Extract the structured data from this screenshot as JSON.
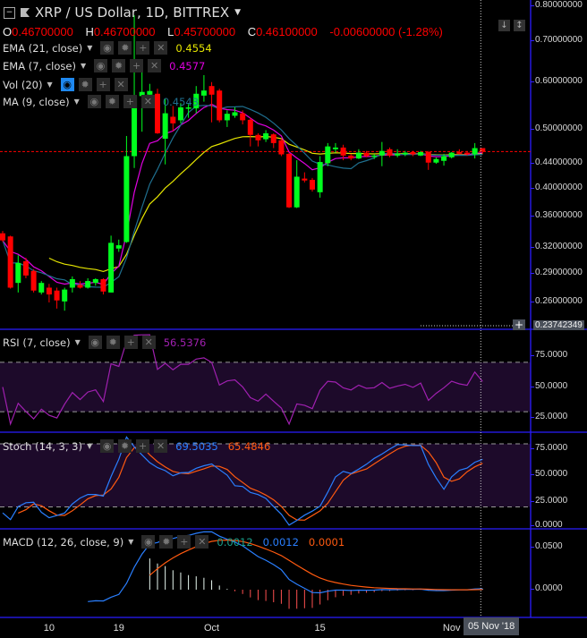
{
  "header": {
    "title": "XRP / US Dollar, 1D, BITTREX",
    "open_label": "O",
    "open": "0.46700000",
    "high_label": "H",
    "high": "0.46700000",
    "low_label": "L",
    "low": "0.45700000",
    "close_label": "C",
    "close": "0.46100000",
    "change": "-0.00600000 (-1.28%)"
  },
  "legend": {
    "ema21": {
      "label": "EMA (21, close)",
      "value": "0.4554",
      "color": "#e5e500"
    },
    "ema7": {
      "label": "EMA (7, close)",
      "value": "0.4577",
      "color": "#e000e0"
    },
    "vol": {
      "label": "Vol (20)"
    },
    "ma9": {
      "label": "MA (9, close)",
      "value": "0.4543",
      "color": "#1f6f8f"
    },
    "rsi": {
      "label": "RSI (7, close)",
      "value": "56.5376",
      "color": "#a020b0"
    },
    "stoch": {
      "label": "Stoch (14, 3, 3)",
      "k": "69.5035",
      "d": "65.4846",
      "k_color": "#2a7fff",
      "d_color": "#ff5a10"
    },
    "macd": {
      "label": "MACD (12, 26, close, 9)",
      "hist": "0.0012",
      "macd": "0.0012",
      "signal": "0.0001",
      "hist_color": "#1a9e8a",
      "macd_color": "#2a7fff",
      "signal_color": "#ff5a10"
    }
  },
  "icons": [
    "eye-icon",
    "gear-icon",
    "plus-icon",
    "close-icon"
  ],
  "price_axis": [
    "0.80000000",
    "0.70000000",
    "0.60000000",
    "0.50000000",
    "0.44000000",
    "0.40000000",
    "0.36000000",
    "0.32000000",
    "0.29000000",
    "0.26000000"
  ],
  "crosshair_price": "0.23742349",
  "rsi_axis": [
    "75.0000",
    "50.0000",
    "25.0000"
  ],
  "stoch_axis": [
    "75.0000",
    "50.0000",
    "25.0000",
    "0.0000"
  ],
  "macd_axis": [
    "0.0500",
    "0.0000"
  ],
  "time_axis": [
    {
      "label": "10",
      "index": 6
    },
    {
      "label": "19",
      "index": 15
    },
    {
      "label": "Oct",
      "index": 27
    },
    {
      "label": "15",
      "index": 41
    },
    {
      "label": "Nov",
      "index": 58
    }
  ],
  "crosshair_date": "05 Nov '18",
  "colors": {
    "up": "#00ff1e",
    "down": "#ff0000",
    "pane_border": "#2b1cff",
    "band": "#1d0a2a"
  },
  "chart_data": {
    "type": "candlestick",
    "scale": "log",
    "start_date": "04 Sep '18",
    "end_date": "05 Nov '18",
    "ylim": [
      0.2374,
      0.8
    ],
    "rsi_levels": [
      30,
      70
    ],
    "stoch_levels": [
      20,
      80
    ],
    "candles": [
      [
        0.338,
        0.341,
        0.327,
        0.329
      ],
      [
        0.334,
        0.335,
        0.274,
        0.275
      ],
      [
        0.28,
        0.311,
        0.27,
        0.302
      ],
      [
        0.304,
        0.308,
        0.285,
        0.288
      ],
      [
        0.293,
        0.295,
        0.27,
        0.272
      ],
      [
        0.27,
        0.282,
        0.268,
        0.28
      ],
      [
        0.275,
        0.279,
        0.26,
        0.268
      ],
      [
        0.272,
        0.275,
        0.254,
        0.262
      ],
      [
        0.261,
        0.275,
        0.252,
        0.273
      ],
      [
        0.275,
        0.287,
        0.27,
        0.284
      ],
      [
        0.278,
        0.282,
        0.274,
        0.275
      ],
      [
        0.275,
        0.285,
        0.274,
        0.282
      ],
      [
        0.28,
        0.285,
        0.277,
        0.284
      ],
      [
        0.284,
        0.285,
        0.268,
        0.271
      ],
      [
        0.27,
        0.335,
        0.27,
        0.326
      ],
      [
        0.319,
        0.33,
        0.315,
        0.323
      ],
      [
        0.327,
        0.489,
        0.326,
        0.453
      ],
      [
        0.453,
        0.773,
        0.433,
        0.569
      ],
      [
        0.569,
        0.629,
        0.497,
        0.578
      ],
      [
        0.572,
        0.596,
        0.561,
        0.58
      ],
      [
        0.574,
        0.585,
        0.493,
        0.494
      ],
      [
        0.484,
        0.563,
        0.439,
        0.533
      ],
      [
        0.526,
        0.548,
        0.498,
        0.513
      ],
      [
        0.519,
        0.554,
        0.513,
        0.545
      ],
      [
        0.543,
        0.552,
        0.524,
        0.545
      ],
      [
        0.543,
        0.591,
        0.533,
        0.574
      ],
      [
        0.57,
        0.616,
        0.557,
        0.581
      ],
      [
        0.591,
        0.6,
        0.515,
        0.572
      ],
      [
        0.581,
        0.585,
        0.515,
        0.519
      ],
      [
        0.519,
        0.539,
        0.506,
        0.532
      ],
      [
        0.528,
        0.545,
        0.524,
        0.535
      ],
      [
        0.533,
        0.539,
        0.511,
        0.519
      ],
      [
        0.52,
        0.524,
        0.47,
        0.491
      ],
      [
        0.491,
        0.494,
        0.47,
        0.481
      ],
      [
        0.483,
        0.5,
        0.478,
        0.494
      ],
      [
        0.492,
        0.494,
        0.467,
        0.476
      ],
      [
        0.481,
        0.484,
        0.453,
        0.456
      ],
      [
        0.457,
        0.459,
        0.372,
        0.373
      ],
      [
        0.373,
        0.446,
        0.372,
        0.419
      ],
      [
        0.416,
        0.426,
        0.41,
        0.413
      ],
      [
        0.414,
        0.417,
        0.396,
        0.399
      ],
      [
        0.395,
        0.453,
        0.387,
        0.443
      ],
      [
        0.441,
        0.476,
        0.436,
        0.47
      ],
      [
        0.465,
        0.476,
        0.459,
        0.468
      ],
      [
        0.468,
        0.473,
        0.446,
        0.454
      ],
      [
        0.454,
        0.457,
        0.446,
        0.449
      ],
      [
        0.449,
        0.465,
        0.448,
        0.459
      ],
      [
        0.459,
        0.462,
        0.451,
        0.453
      ],
      [
        0.453,
        0.457,
        0.448,
        0.454
      ],
      [
        0.454,
        0.478,
        0.436,
        0.462
      ],
      [
        0.465,
        0.468,
        0.451,
        0.454
      ],
      [
        0.454,
        0.465,
        0.451,
        0.457
      ],
      [
        0.456,
        0.462,
        0.453,
        0.459
      ],
      [
        0.46,
        0.462,
        0.453,
        0.456
      ],
      [
        0.454,
        0.462,
        0.453,
        0.46
      ],
      [
        0.46,
        0.462,
        0.43,
        0.442
      ],
      [
        0.442,
        0.451,
        0.44,
        0.448
      ],
      [
        0.445,
        0.457,
        0.437,
        0.453
      ],
      [
        0.451,
        0.46,
        0.449,
        0.459
      ],
      [
        0.46,
        0.465,
        0.456,
        0.457
      ],
      [
        0.459,
        0.462,
        0.454,
        0.456
      ],
      [
        0.456,
        0.476,
        0.449,
        0.467
      ],
      [
        0.467,
        0.467,
        0.457,
        0.461
      ]
    ]
  }
}
